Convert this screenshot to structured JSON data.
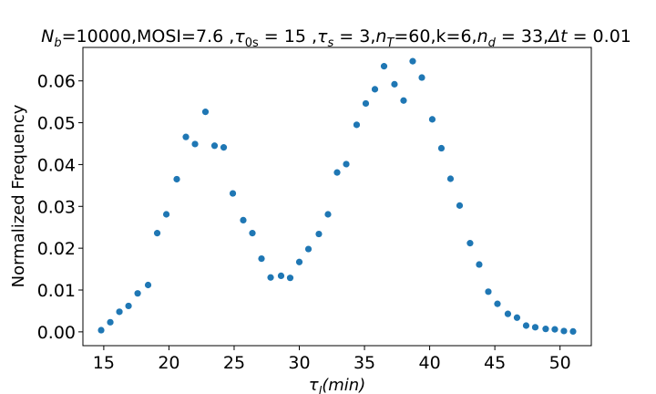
{
  "chart_data": {
    "type": "scatter",
    "title": "N_b=10000,MOSI=7.6 ,τ_0s = 15 ,τ_s = 3,n_T=60,k=6,n_d = 33,Δt = 0.01",
    "title_parts": {
      "N": "N",
      "b": "b",
      "rest1": "=10000,MOSI=7.6 ,",
      "tau1": "τ",
      "sub0s": "0s",
      "eq15": " = 15 ,",
      "tau2": "τ",
      "subs": "s",
      "eq3": " = 3,",
      "n1": "n",
      "subT": "T",
      "eq60": "=60,k=6,",
      "n2": "n",
      "subd": "d",
      "eq33": " = 33,",
      "delta": "Δt",
      "eqdt": " = 0.01"
    },
    "xlabel_parts": {
      "tau": "τ",
      "sub": "l",
      "rest": "(min)"
    },
    "ylabel": "Normalized Frequency",
    "xlim": [
      13.4,
      52.4
    ],
    "ylim": [
      -0.0033,
      0.068
    ],
    "xticks": [
      15,
      20,
      25,
      30,
      35,
      40,
      45,
      50
    ],
    "xtick_labels": [
      "15",
      "20",
      "25",
      "30",
      "35",
      "40",
      "45",
      "50"
    ],
    "yticks": [
      0.0,
      0.01,
      0.02,
      0.03,
      0.04,
      0.05,
      0.06
    ],
    "ytick_labels": [
      "0.00",
      "0.01",
      "0.02",
      "0.03",
      "0.04",
      "0.05",
      "0.06"
    ],
    "marker_color": "#1f77b4",
    "x": [
      14.8,
      15.5,
      16.2,
      16.9,
      17.6,
      18.4,
      19.1,
      19.8,
      20.6,
      21.3,
      22.0,
      22.8,
      23.5,
      24.2,
      24.9,
      25.7,
      26.4,
      27.1,
      27.8,
      28.6,
      29.3,
      30.0,
      30.7,
      31.5,
      32.2,
      32.9,
      33.6,
      34.4,
      35.1,
      35.8,
      36.5,
      37.3,
      38.0,
      38.7,
      39.4,
      40.2,
      40.9,
      41.6,
      42.3,
      43.1,
      43.8,
      44.5,
      45.2,
      46.0,
      46.7,
      47.4,
      48.1,
      48.9,
      49.6,
      50.3,
      51.0
    ],
    "y": [
      0.0004,
      0.0023,
      0.0048,
      0.0062,
      0.0092,
      0.0112,
      0.0236,
      0.0281,
      0.0365,
      0.0466,
      0.0449,
      0.0526,
      0.0445,
      0.0441,
      0.0331,
      0.0267,
      0.0236,
      0.0175,
      0.013,
      0.0134,
      0.0129,
      0.0167,
      0.0198,
      0.0234,
      0.0281,
      0.0381,
      0.0401,
      0.0495,
      0.0546,
      0.058,
      0.0635,
      0.0592,
      0.0553,
      0.0647,
      0.0608,
      0.0508,
      0.0439,
      0.0366,
      0.0302,
      0.0212,
      0.0161,
      0.0096,
      0.0067,
      0.0043,
      0.0034,
      0.0015,
      0.0011,
      0.0007,
      0.0006,
      0.0002,
      0.0001
    ]
  }
}
